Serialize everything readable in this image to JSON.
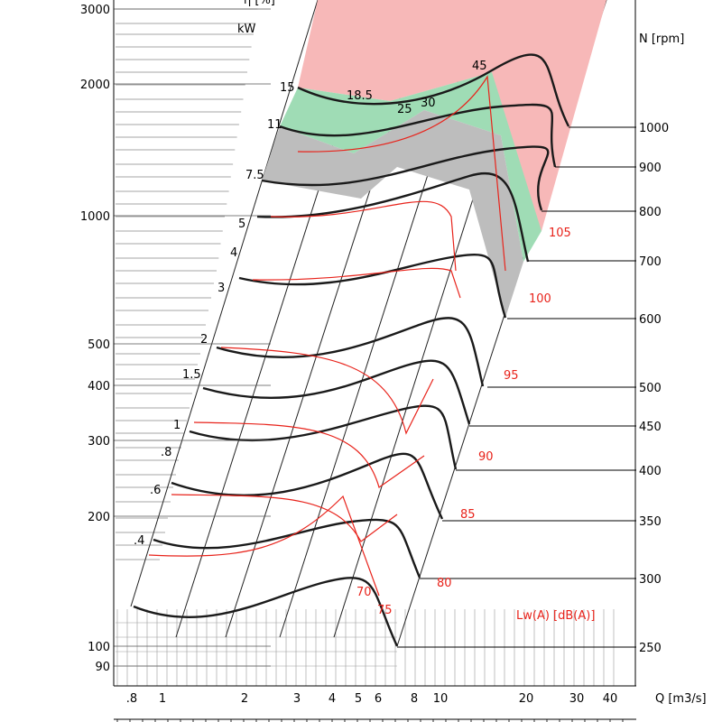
{
  "chart_data": {
    "type": "line",
    "chart_kind": "fan performance selection chart (log-log)",
    "title": "",
    "xlabel": "Q [m3/s]",
    "x_ticks": [
      ".8",
      "1",
      "2",
      "3",
      "4",
      "5",
      "6",
      "8",
      "10",
      "20",
      "30",
      "40"
    ],
    "x_tick_values": [
      0.8,
      1,
      2,
      3,
      4,
      5,
      6,
      8,
      10,
      20,
      30,
      40
    ],
    "xlim": [
      0.6,
      50
    ],
    "y_ticks": [
      "90",
      "100",
      "200",
      "300",
      "400",
      "500",
      "1000",
      "2000",
      "3000"
    ],
    "y_tick_values": [
      90,
      100,
      200,
      300,
      400,
      500,
      1000,
      2000,
      3000
    ],
    "ylim": [
      80,
      3000
    ],
    "x_scale": "log",
    "y_scale": "log",
    "power_label": "kW",
    "power_values": [
      ".4",
      ".6",
      ".8",
      "1",
      "1.5",
      "2",
      "3",
      "4",
      "5",
      "7.5",
      "11",
      "15",
      "18.5",
      "25",
      "30",
      "45"
    ],
    "eta_label": "η [%]",
    "speed_label": "N [rpm]",
    "speeds": [
      "1000",
      "900",
      "800",
      "700",
      "600",
      "500",
      "450",
      "400",
      "350",
      "300",
      "250"
    ],
    "noise_label": "Lw(A)  [dB(A)]",
    "noise_levels": [
      "70",
      "75",
      "80",
      "85",
      "90",
      "95",
      "100",
      "105"
    ],
    "grid": true,
    "colors": {
      "curve": "#1a1a1a",
      "noise": "#e8231b",
      "zone_red": "#f7b8b8",
      "zone_green": "#9fdcb5",
      "zone_grey": "#bdbdbd"
    }
  }
}
